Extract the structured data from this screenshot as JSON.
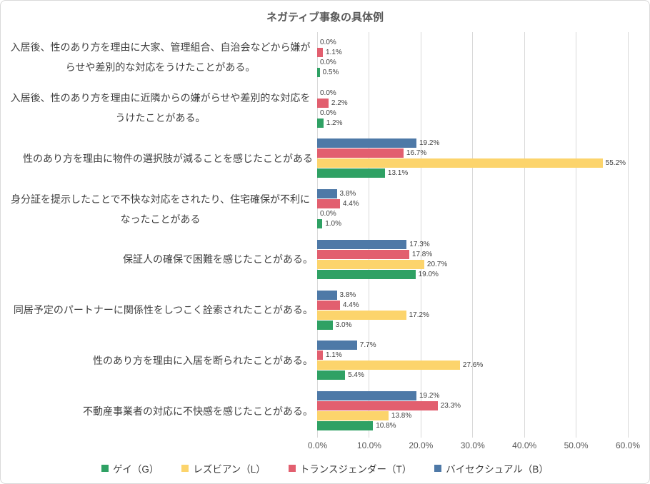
{
  "chart": {
    "title": "ネガティブ事象の具体例"
  },
  "chart_data": {
    "type": "bar",
    "orientation": "horizontal",
    "title": "ネガティブ事象の具体例",
    "categories": [
      "入居後、性のあり方を理由に大家、管理組合、自治会などから嫌がらせや差別的な対応をうけたことがある。",
      "入居後、性のあり方を理由に近隣からの嫌がらせや差別的な対応をうけたことがある。",
      "性のあり方を理由に物件の選択肢が減ることを感じたことがある",
      "身分証を提示したことで不快な対応をされたり、住宅確保が不利になったことがある",
      "保証人の確保で困難を感じたことがある。",
      "同居予定のパートナーに関係性をしつこく詮索されたことがある。",
      "性のあり方を理由に入居を断られたことがある。",
      "不動産事業者の対応に不快感を感じたことがある。"
    ],
    "series": [
      {
        "name": "ゲイ（G）",
        "color": "#2FA164",
        "values": [
          0.5,
          1.2,
          13.1,
          1.0,
          19.0,
          3.0,
          5.4,
          10.8
        ]
      },
      {
        "name": "レズビアン（L）",
        "color": "#FCD46C",
        "values": [
          0.0,
          0.0,
          55.2,
          0.0,
          20.7,
          17.2,
          27.6,
          13.8
        ]
      },
      {
        "name": "トランスジェンダー（T）",
        "color": "#E25F6F",
        "values": [
          1.1,
          2.2,
          16.7,
          4.4,
          17.8,
          4.4,
          1.1,
          23.3
        ]
      },
      {
        "name": "バイセクシュアル（B）",
        "color": "#4E79A7",
        "values": [
          0.0,
          0.0,
          19.2,
          3.8,
          17.3,
          3.8,
          7.7,
          19.2
        ]
      }
    ],
    "bar_order_top_to_bottom": [
      "バイセクシュアル（B）",
      "トランスジェンダー（T）",
      "レズビアン（L）",
      "ゲイ（G）"
    ],
    "xlim": [
      0,
      60
    ],
    "x_tick_values": [
      0,
      10,
      20,
      30,
      40,
      50,
      60
    ],
    "x_tick_labels": [
      "0.0%",
      "10.0%",
      "20.0%",
      "30.0%",
      "40.0%",
      "50.0%",
      "60.0%"
    ],
    "value_suffix": "%",
    "value_decimals": 1,
    "gridlines": true,
    "grid_color": "#d9d9d9",
    "legend_position": "bottom"
  }
}
